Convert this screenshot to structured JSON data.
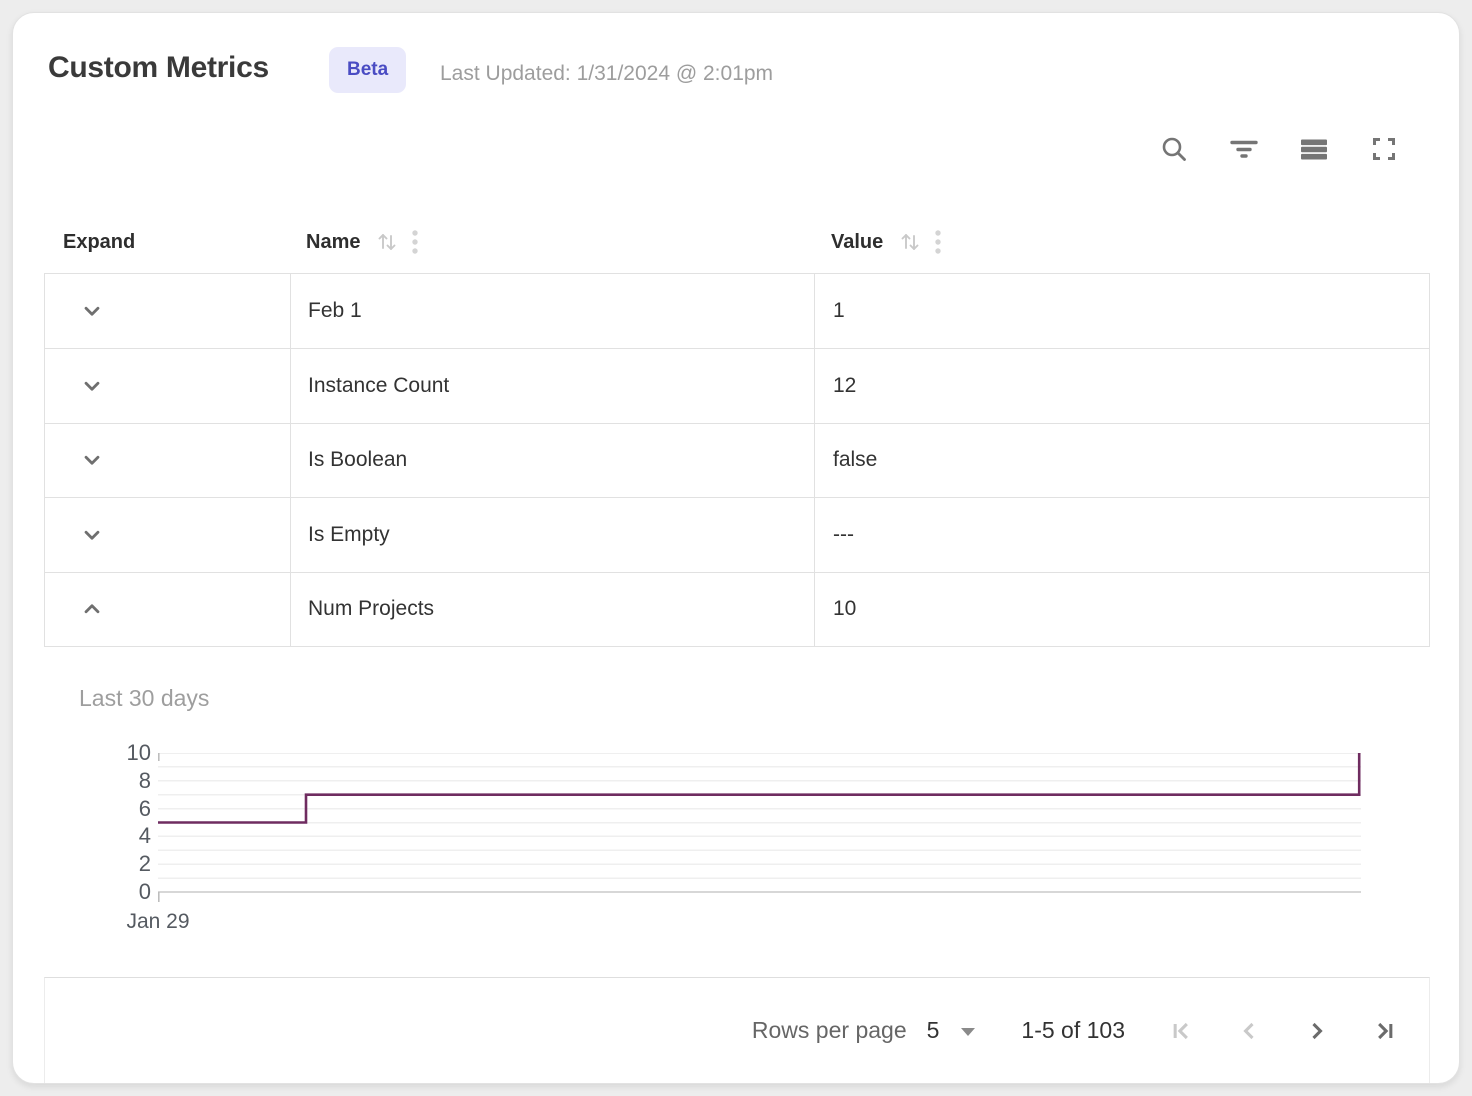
{
  "header": {
    "title": "Custom Metrics",
    "badge": "Beta",
    "last_updated": "Last Updated: 1/31/2024 @ 2:01pm"
  },
  "toolbar": {
    "icons": [
      "search",
      "filter",
      "density",
      "fullscreen"
    ]
  },
  "table": {
    "columns": {
      "expand": "Expand",
      "name": "Name",
      "value": "Value"
    },
    "rows": [
      {
        "name": "Feb 1",
        "value": "1",
        "expanded": false
      },
      {
        "name": "Instance Count",
        "value": "12",
        "expanded": false
      },
      {
        "name": "Is Boolean",
        "value": "false",
        "expanded": false
      },
      {
        "name": "Is Empty",
        "value": "---",
        "expanded": false
      },
      {
        "name": "Num Projects",
        "value": "10",
        "expanded": true
      }
    ]
  },
  "chart_data": {
    "type": "line",
    "subtype": "step",
    "title": "Last 30 days",
    "series": [
      {
        "points": [
          [
            0,
            5
          ],
          [
            0.123,
            5
          ],
          [
            0.123,
            7
          ],
          [
            0.9985,
            7
          ],
          [
            0.9985,
            10
          ],
          [
            1,
            10
          ]
        ]
      }
    ],
    "x_unit": "fraction of 30-day axis",
    "x_tick_labels": [
      "Jan 29"
    ],
    "ylim": [
      0,
      10
    ],
    "y_ticks": [
      0,
      2,
      4,
      6,
      8,
      10
    ],
    "y_minor_step": 1,
    "grid": true,
    "legend": false,
    "line_color": "#6f2c60"
  },
  "pagination": {
    "rows_per_page_label": "Rows per page",
    "rows_per_page_value": "5",
    "range_label": "1-5 of 103",
    "first_enabled": false,
    "prev_enabled": false,
    "next_enabled": true,
    "last_enabled": true
  },
  "colors": {
    "badge_bg": "#e9e9fb",
    "badge_text": "#4a4cc3",
    "chart_line": "#6f2c60",
    "border": "#e1e1e1"
  }
}
